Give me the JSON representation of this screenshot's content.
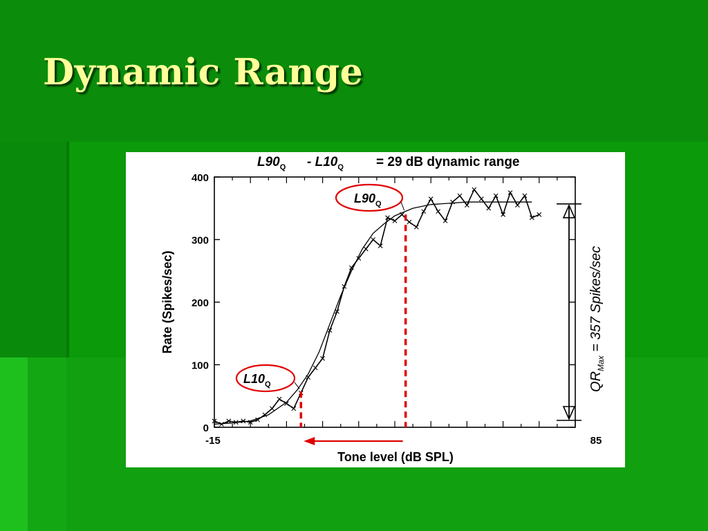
{
  "slide": {
    "title": "Dynamic Range"
  },
  "chart_data": {
    "type": "line",
    "title": "L90",
    "title_sub": "Q",
    "title_mid": "- L10",
    "title_mid_sub": "Q",
    "title_tail": "= 29 dB dynamic range",
    "xlabel": "Tone level (dB SPL)",
    "ylabel": "Rate (Spikes/sec)",
    "xlim": [
      -15,
      85
    ],
    "ylim": [
      0,
      400
    ],
    "x_ticks": [
      "-15",
      "85"
    ],
    "y_ticks": [
      "0",
      "100",
      "200",
      "300",
      "400"
    ],
    "y_tick_values": [
      0,
      100,
      200,
      300,
      400
    ],
    "series": [
      {
        "kind": "measured",
        "x": [
          -15,
          -13,
          -11,
          -9,
          -7,
          -5,
          -3,
          -1,
          1,
          3,
          5,
          7,
          9,
          11,
          13,
          15,
          17,
          19,
          21,
          23,
          25,
          27,
          29,
          31,
          33,
          35,
          37,
          39,
          41,
          43,
          45,
          47,
          49,
          51,
          53,
          55,
          57,
          59,
          61,
          63,
          65,
          67,
          69,
          71,
          73,
          75
        ],
        "y": [
          10,
          5,
          10,
          8,
          10,
          8,
          12,
          20,
          30,
          45,
          38,
          30,
          55,
          80,
          95,
          110,
          155,
          185,
          225,
          255,
          270,
          285,
          300,
          290,
          335,
          330,
          340,
          328,
          320,
          345,
          365,
          345,
          330,
          360,
          370,
          355,
          380,
          365,
          350,
          370,
          340,
          375,
          355,
          370,
          335,
          340
        ]
      },
      {
        "kind": "fit",
        "x": [
          -15,
          -10,
          -5,
          0,
          5,
          8,
          11,
          14,
          17,
          20,
          23,
          26,
          29,
          32,
          35,
          40,
          45,
          50,
          55,
          60,
          65,
          70,
          73
        ],
        "y": [
          5,
          7,
          10,
          20,
          40,
          60,
          85,
          120,
          165,
          210,
          250,
          285,
          310,
          325,
          338,
          350,
          356,
          358,
          360,
          360,
          360,
          360,
          360
        ]
      }
    ],
    "annotations": {
      "l10": {
        "label": "L10",
        "sub": "Q",
        "x": 9,
        "y": 57
      },
      "l90": {
        "label": "L90",
        "sub": "Q",
        "x": 38,
        "y": 340
      },
      "qr": {
        "label": "QR",
        "sub": "Max",
        "tail": "= 357 Spikes/sec",
        "from": 0,
        "to": 357
      }
    }
  },
  "colors": {
    "accent": "#e00000",
    "ink": "#000000",
    "title": "#ffff99"
  }
}
